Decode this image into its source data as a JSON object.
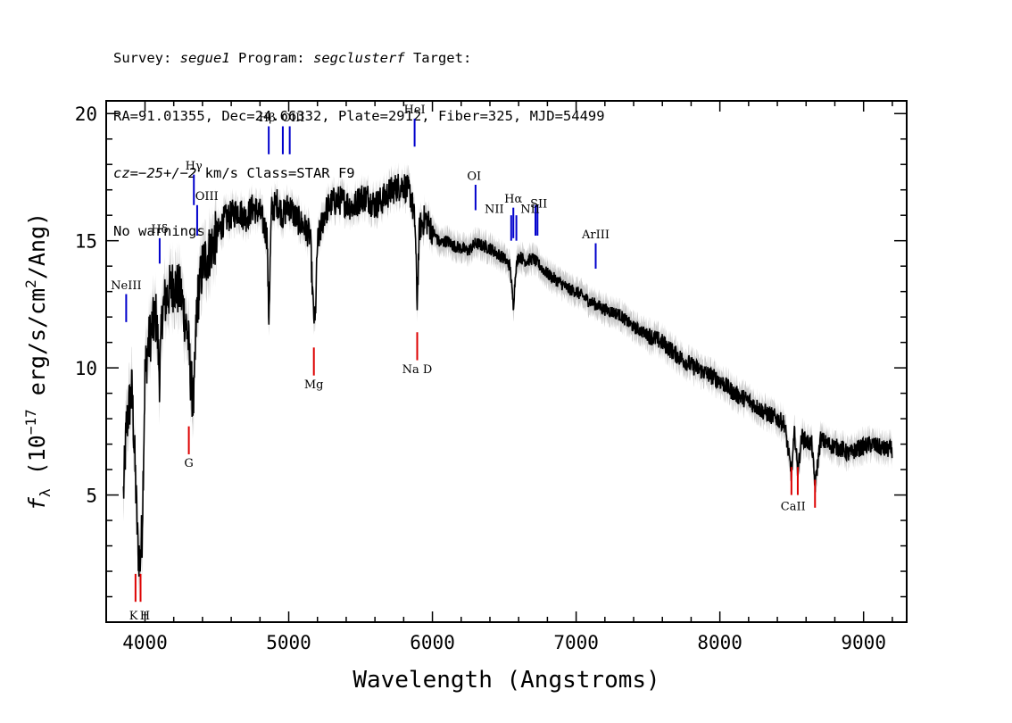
{
  "header": {
    "line1": {
      "pre": "Survey: ",
      "survey": "segue1",
      "mid": " Program: ",
      "program": "segclusterf",
      "post": " Target:"
    },
    "line2": "RA=91.01355, Dec=24.66332, Plate=2912, Fiber=325, MJD=54499",
    "line3": {
      "cz": "cz=−25+/−2",
      "post": " km/s Class=STAR F9"
    },
    "line4": "No warnings."
  },
  "chart_data": {
    "type": "line",
    "xlabel": "Wavelength (Angstroms)",
    "ylabel_parts": {
      "f": "f",
      "sub": "λ",
      "a": " (10",
      "sup1": "−17",
      "b": " erg/s/cm",
      "sup2": "2",
      "c": "/Ang)"
    },
    "xlim": [
      3730,
      9300
    ],
    "ylim": [
      0,
      20.5
    ],
    "x_ticks": [
      4000,
      5000,
      6000,
      7000,
      8000,
      9000
    ],
    "y_ticks": [
      5,
      10,
      15,
      20
    ],
    "colors": {
      "spectrum": "#000000",
      "error_band": "#bbbbbb",
      "emission": "#0000cc",
      "absorption": "#dd0000"
    },
    "series": [
      {
        "x": [
          3850,
          3870,
          3890,
          3910,
          3930,
          3950,
          3965,
          3980,
          4000,
          4020,
          4050,
          4080,
          4102,
          4120,
          4150,
          4200,
          4250,
          4300,
          4320,
          4340,
          4360,
          4400,
          4450,
          4500,
          4550,
          4600,
          4650,
          4700,
          4750,
          4800,
          4850,
          4861,
          4880,
          4920,
          4960,
          5000,
          5050,
          5100,
          5150,
          5170,
          5183,
          5200,
          5250,
          5300,
          5350,
          5400,
          5450,
          5500,
          5550,
          5600,
          5650,
          5700,
          5750,
          5800,
          5850,
          5880,
          5893,
          5910,
          5950,
          6000,
          6050,
          6100,
          6150,
          6200,
          6250,
          6300,
          6350,
          6400,
          6450,
          6500,
          6540,
          6563,
          6580,
          6600,
          6650,
          6700,
          6750,
          6800,
          6850,
          6900,
          6950,
          7000,
          7100,
          7200,
          7300,
          7400,
          7500,
          7600,
          7700,
          7800,
          7900,
          8000,
          8100,
          8200,
          8300,
          8400,
          8450,
          8498,
          8520,
          8542,
          8570,
          8600,
          8640,
          8662,
          8700,
          8750,
          8800,
          8850,
          8900,
          8950,
          9000,
          9050,
          9100,
          9150,
          9200
        ],
        "y": [
          5.0,
          7.6,
          8.5,
          9.1,
          6.2,
          3.0,
          2.4,
          3.6,
          9.8,
          10.8,
          11.6,
          12.0,
          9.6,
          12.2,
          12.8,
          13.3,
          12.9,
          11.2,
          9.4,
          8.6,
          12.4,
          14.0,
          14.6,
          15.2,
          15.8,
          16.0,
          16.2,
          15.9,
          16.3,
          16.1,
          15.2,
          11.8,
          16.2,
          16.5,
          16.0,
          16.4,
          15.9,
          15.6,
          15.2,
          12.4,
          11.6,
          14.9,
          16.1,
          16.5,
          16.6,
          16.5,
          16.3,
          16.7,
          16.7,
          16.4,
          16.6,
          16.9,
          17.1,
          17.2,
          16.8,
          15.6,
          12.5,
          15.5,
          15.9,
          15.4,
          14.9,
          15.0,
          14.8,
          14.7,
          14.6,
          14.9,
          14.8,
          14.7,
          14.5,
          14.3,
          14.0,
          12.4,
          13.9,
          14.4,
          14.2,
          14.3,
          14.0,
          13.7,
          13.5,
          13.3,
          13.1,
          13.0,
          12.6,
          12.3,
          12.1,
          11.6,
          11.3,
          11.0,
          10.5,
          10.1,
          9.8,
          9.5,
          9.0,
          8.7,
          8.3,
          8.0,
          7.8,
          5.8,
          7.5,
          5.9,
          7.3,
          7.1,
          7.0,
          5.3,
          7.2,
          7.0,
          6.9,
          6.8,
          6.6,
          6.8,
          6.9,
          7.0,
          6.9,
          6.8,
          6.8
        ]
      }
    ],
    "lines_emission": [
      {
        "label": "NeIII",
        "x": 3869,
        "y0": 11.8,
        "y1": 12.9
      },
      {
        "label": "Hδ",
        "x": 4102,
        "y0": 14.1,
        "y1": 15.1
      },
      {
        "label": "Hγ",
        "x": 4340,
        "y0": 16.4,
        "y1": 17.6
      },
      {
        "label": "OIII",
        "x": 4363,
        "y0": 15.2,
        "y1": 16.4
      },
      {
        "label": "Hβ",
        "x": 4861,
        "y0": 18.4,
        "y1": 19.5
      },
      {
        "label": "OIII",
        "x": 4959,
        "y0": 18.4,
        "y1": 19.5
      },
      {
        "label": "",
        "x": 5007,
        "y0": 18.4,
        "y1": 19.5
      },
      {
        "label": "HeI",
        "x": 5876,
        "y0": 18.7,
        "y1": 19.8
      },
      {
        "label": "OI",
        "x": 6300,
        "y0": 16.2,
        "y1": 17.2
      },
      {
        "label": "NII",
        "x": 6548,
        "y0": 15.0,
        "y1": 16.0
      },
      {
        "label": "Hα",
        "x": 6563,
        "y0": 15.1,
        "y1": 16.3
      },
      {
        "label": "NII",
        "x": 6584,
        "y0": 15.0,
        "y1": 16.0
      },
      {
        "label": "SII",
        "x": 6717,
        "y0": 15.2,
        "y1": 16.4
      },
      {
        "label": "",
        "x": 6731,
        "y0": 15.2,
        "y1": 16.4
      },
      {
        "label": "ArIII",
        "x": 7136,
        "y0": 13.9,
        "y1": 14.9
      }
    ],
    "lines_absorption": [
      {
        "label": "K",
        "x": 3934,
        "y0": 0.8,
        "y1": 1.9
      },
      {
        "label": "H",
        "x": 3969,
        "y0": 0.8,
        "y1": 1.9
      },
      {
        "label": "G",
        "x": 4305,
        "y0": 6.6,
        "y1": 7.7
      },
      {
        "label": "Mg",
        "x": 5175,
        "y0": 9.7,
        "y1": 10.8
      },
      {
        "label": "Na D",
        "x": 5894,
        "y0": 10.3,
        "y1": 11.4
      },
      {
        "label": "CaII",
        "x": 8498,
        "y0": 5.0,
        "y1": 6.1
      },
      {
        "label": "",
        "x": 8542,
        "y0": 5.0,
        "y1": 6.1
      },
      {
        "label": "",
        "x": 8662,
        "y0": 4.5,
        "y1": 5.6
      }
    ],
    "line_label_text": [
      {
        "text": "NeIII",
        "x": 3869,
        "y": 13.1,
        "kind": "em"
      },
      {
        "text": "Hδ",
        "x": 4102,
        "y": 15.3,
        "kind": "em"
      },
      {
        "text": "Hγ",
        "x": 4340,
        "y": 17.8,
        "kind": "em"
      },
      {
        "text": "OIII",
        "x": 4430,
        "y": 16.6,
        "kind": "em"
      },
      {
        "text": "Hβ",
        "x": 4850,
        "y": 19.7,
        "kind": "em"
      },
      {
        "text": "OIII",
        "x": 5030,
        "y": 19.7,
        "kind": "em"
      },
      {
        "text": "HeI",
        "x": 5876,
        "y": 20.0,
        "kind": "em"
      },
      {
        "text": "OI",
        "x": 6290,
        "y": 17.4,
        "kind": "em"
      },
      {
        "text": "NII",
        "x": 6430,
        "y": 16.1,
        "kind": "em"
      },
      {
        "text": "Hα",
        "x": 6563,
        "y": 16.5,
        "kind": "em"
      },
      {
        "text": "NII",
        "x": 6680,
        "y": 16.1,
        "kind": "em"
      },
      {
        "text": "SII",
        "x": 6740,
        "y": 16.3,
        "kind": "em"
      },
      {
        "text": "ArIII",
        "x": 7136,
        "y": 15.1,
        "kind": "em"
      },
      {
        "text": "K",
        "x": 3920,
        "y": 0.1,
        "kind": "ab"
      },
      {
        "text": "H",
        "x": 4000,
        "y": 0.1,
        "kind": "ab"
      },
      {
        "text": "G",
        "x": 4305,
        "y": 6.1,
        "kind": "ab"
      },
      {
        "text": "Mg",
        "x": 5175,
        "y": 9.2,
        "kind": "ab"
      },
      {
        "text": "Na D",
        "x": 5894,
        "y": 9.8,
        "kind": "ab"
      },
      {
        "text": "CaII",
        "x": 8510,
        "y": 4.4,
        "kind": "ab"
      }
    ]
  }
}
